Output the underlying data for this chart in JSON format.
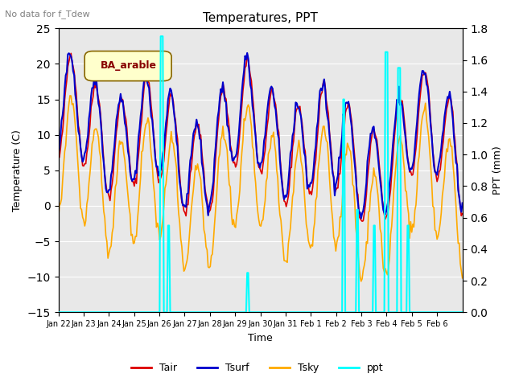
{
  "title": "Temperatures, PPT",
  "subtitle": "No data for f_Tdew",
  "legend_label": "BA_arable",
  "xlabel": "Time",
  "ylabel_left": "Temperature (C)",
  "ylabel_right": "PPT (mm)",
  "ylim_left": [
    -15,
    25
  ],
  "ylim_right": [
    0.0,
    1.8
  ],
  "yticks_left": [
    -15,
    -10,
    -5,
    0,
    5,
    10,
    15,
    20,
    25
  ],
  "yticks_right": [
    0.0,
    0.2,
    0.4,
    0.6,
    0.8,
    1.0,
    1.2,
    1.4,
    1.6,
    1.8
  ],
  "bg_color": "#e8e8e8",
  "colors": {
    "Tair": "#dd0000",
    "Tsurf": "#0000cc",
    "Tsky": "#ffaa00",
    "ppt": "#00ffff"
  },
  "linewidths": {
    "Tair": 1.2,
    "Tsurf": 1.5,
    "Tsky": 1.2,
    "ppt": 1.5
  },
  "xtick_labels": [
    "Jan 22",
    "Jan 23",
    "Jan 24",
    "Jan 25",
    "Jan 26",
    "Jan 27",
    "Jan 28",
    "Jan 29",
    "Jan 30",
    "Jan 31",
    "Feb 1",
    "Feb 2",
    "Feb 3",
    "Feb 4",
    "Feb 5",
    "Feb 6"
  ],
  "n_days": 16
}
